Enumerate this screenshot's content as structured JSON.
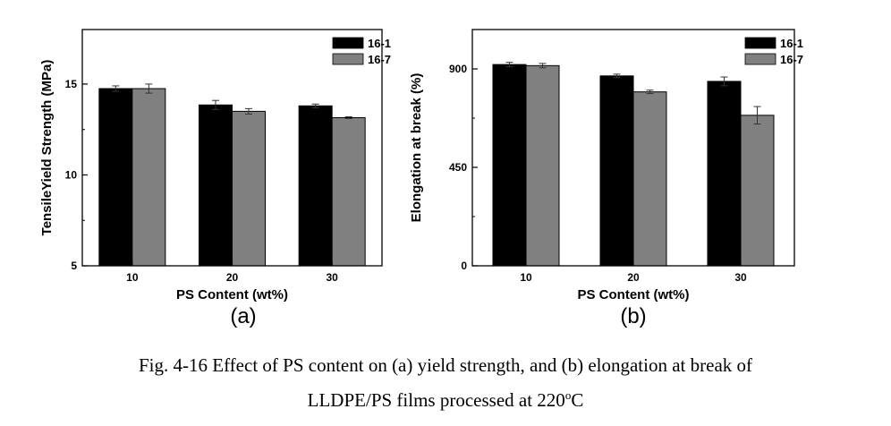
{
  "chart_data": [
    {
      "type": "bar",
      "panel_label": "(a)",
      "xlabel": "PS Content (wt%)",
      "ylabel": "TensileYield Strength (MPa)",
      "categories": [
        "10",
        "20",
        "30"
      ],
      "ylim": [
        5,
        18
      ],
      "yticks": [
        5,
        10,
        15
      ],
      "legend_position": "top-right",
      "series": [
        {
          "name": "16-1",
          "values": [
            14.75,
            13.85,
            13.8
          ],
          "errors": [
            0.15,
            0.25,
            0.1
          ],
          "color": "#000000"
        },
        {
          "name": "16-7",
          "values": [
            14.75,
            13.5,
            13.15
          ],
          "errors": [
            0.25,
            0.15,
            0.05
          ],
          "color": "#808080"
        }
      ]
    },
    {
      "type": "bar",
      "panel_label": "(b)",
      "xlabel": "PS Content (wt%)",
      "ylabel": "Elongation at break (%)",
      "categories": [
        "10",
        "20",
        "30"
      ],
      "ylim": [
        0,
        1080
      ],
      "yticks": [
        0,
        450,
        900
      ],
      "legend_position": "top-right",
      "series": [
        {
          "name": "16-1",
          "values": [
            920,
            868,
            843
          ],
          "errors": [
            10,
            8,
            20
          ],
          "color": "#000000"
        },
        {
          "name": "16-7",
          "values": [
            915,
            795,
            688
          ],
          "errors": [
            10,
            8,
            40
          ],
          "color": "#808080"
        }
      ]
    }
  ],
  "caption": {
    "line1": "Fig. 4-16 Effect of PS content on (a) yield strength, and (b) elongation at break of",
    "line2_prefix": "LLDPE/PS films processed at 220",
    "line2_sup": "o",
    "line2_suffix": "C"
  }
}
